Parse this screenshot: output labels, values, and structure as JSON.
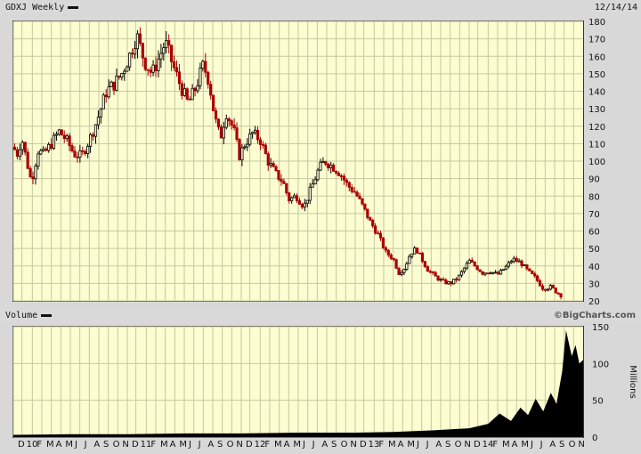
{
  "header": {
    "symbol_label": "GDXJ Weekly",
    "date": "12/14/14"
  },
  "volume_header": {
    "label": "Volume",
    "brand": "©BigCharts.com"
  },
  "chart_data": [
    {
      "type": "candlestick",
      "title": "GDXJ Weekly",
      "ylim": [
        20,
        180
      ],
      "y_ticks": [
        20,
        30,
        40,
        50,
        60,
        70,
        80,
        90,
        100,
        110,
        120,
        130,
        140,
        150,
        160,
        170,
        180
      ],
      "up_color": "#000000",
      "down_color": "#aa0000",
      "grid": true,
      "close_points": [
        {
          "x": 0.0,
          "y": 108
        },
        {
          "x": 0.2,
          "y": 104
        },
        {
          "x": 0.45,
          "y": 113
        },
        {
          "x": 0.7,
          "y": 100
        },
        {
          "x": 0.95,
          "y": 88
        },
        {
          "x": 1.3,
          "y": 106
        },
        {
          "x": 1.6,
          "y": 104
        },
        {
          "x": 2.0,
          "y": 110
        },
        {
          "x": 2.4,
          "y": 117
        },
        {
          "x": 2.8,
          "y": 112
        },
        {
          "x": 3.2,
          "y": 104
        },
        {
          "x": 3.6,
          "y": 103
        },
        {
          "x": 4.0,
          "y": 112
        },
        {
          "x": 4.4,
          "y": 123
        },
        {
          "x": 4.9,
          "y": 140
        },
        {
          "x": 5.3,
          "y": 144
        },
        {
          "x": 5.7,
          "y": 150
        },
        {
          "x": 6.1,
          "y": 160
        },
        {
          "x": 6.5,
          "y": 172
        },
        {
          "x": 6.9,
          "y": 157
        },
        {
          "x": 7.3,
          "y": 150
        },
        {
          "x": 7.7,
          "y": 160
        },
        {
          "x": 8.0,
          "y": 168
        },
        {
          "x": 8.4,
          "y": 155
        },
        {
          "x": 8.8,
          "y": 143
        },
        {
          "x": 9.2,
          "y": 133
        },
        {
          "x": 9.6,
          "y": 142
        },
        {
          "x": 10.0,
          "y": 155
        },
        {
          "x": 10.3,
          "y": 146
        },
        {
          "x": 10.6,
          "y": 125
        },
        {
          "x": 10.9,
          "y": 113
        },
        {
          "x": 11.2,
          "y": 128
        },
        {
          "x": 11.6,
          "y": 118
        },
        {
          "x": 11.9,
          "y": 103
        },
        {
          "x": 12.2,
          "y": 110
        },
        {
          "x": 12.6,
          "y": 116
        },
        {
          "x": 13.0,
          "y": 112
        },
        {
          "x": 13.4,
          "y": 100
        },
        {
          "x": 13.8,
          "y": 93
        },
        {
          "x": 14.2,
          "y": 88
        },
        {
          "x": 14.5,
          "y": 78
        },
        {
          "x": 14.9,
          "y": 80
        },
        {
          "x": 15.3,
          "y": 74
        },
        {
          "x": 15.7,
          "y": 85
        },
        {
          "x": 16.1,
          "y": 96
        },
        {
          "x": 16.4,
          "y": 100
        },
        {
          "x": 16.8,
          "y": 97
        },
        {
          "x": 17.2,
          "y": 93
        },
        {
          "x": 17.6,
          "y": 86
        },
        {
          "x": 18.0,
          "y": 82
        },
        {
          "x": 18.4,
          "y": 74
        },
        {
          "x": 18.8,
          "y": 65
        },
        {
          "x": 19.2,
          "y": 58
        },
        {
          "x": 19.6,
          "y": 48
        },
        {
          "x": 20.0,
          "y": 44
        },
        {
          "x": 20.3,
          "y": 36
        },
        {
          "x": 20.6,
          "y": 39
        },
        {
          "x": 20.9,
          "y": 47
        },
        {
          "x": 21.2,
          "y": 50
        },
        {
          "x": 21.5,
          "y": 44
        },
        {
          "x": 21.8,
          "y": 38
        },
        {
          "x": 22.2,
          "y": 34
        },
        {
          "x": 22.6,
          "y": 31
        },
        {
          "x": 23.0,
          "y": 30
        },
        {
          "x": 23.4,
          "y": 33
        },
        {
          "x": 23.7,
          "y": 38
        },
        {
          "x": 24.0,
          "y": 43
        },
        {
          "x": 24.3,
          "y": 40
        },
        {
          "x": 24.7,
          "y": 36
        },
        {
          "x": 25.1,
          "y": 37
        },
        {
          "x": 25.5,
          "y": 35
        },
        {
          "x": 25.9,
          "y": 39
        },
        {
          "x": 26.3,
          "y": 44
        },
        {
          "x": 26.7,
          "y": 42
        },
        {
          "x": 27.1,
          "y": 37
        },
        {
          "x": 27.5,
          "y": 33
        },
        {
          "x": 27.9,
          "y": 27
        },
        {
          "x": 28.3,
          "y": 28
        },
        {
          "x": 28.6,
          "y": 25
        },
        {
          "x": 28.9,
          "y": 23
        }
      ],
      "months": [
        {
          "label": "D",
          "x": 0.0
        },
        {
          "label": "10",
          "x": 0.45
        },
        {
          "label": "F",
          "x": 1.0
        },
        {
          "label": "M",
          "x": 1.5
        },
        {
          "label": "A",
          "x": 2.0
        },
        {
          "label": "M",
          "x": 2.5
        },
        {
          "label": "J",
          "x": 3.0
        },
        {
          "label": "J",
          "x": 3.5
        },
        {
          "label": "A",
          "x": 4.0
        },
        {
          "label": "S",
          "x": 4.5
        },
        {
          "label": "O",
          "x": 5.0
        },
        {
          "label": "N",
          "x": 5.5
        },
        {
          "label": "D",
          "x": 6.0
        },
        {
          "label": "11",
          "x": 6.45
        },
        {
          "label": "F",
          "x": 7.0
        },
        {
          "label": "M",
          "x": 7.5
        },
        {
          "label": "A",
          "x": 8.0
        },
        {
          "label": "M",
          "x": 8.5
        },
        {
          "label": "J",
          "x": 9.0
        },
        {
          "label": "J",
          "x": 9.5
        },
        {
          "label": "A",
          "x": 10.0
        },
        {
          "label": "S",
          "x": 10.5
        },
        {
          "label": "O",
          "x": 11.0
        },
        {
          "label": "N",
          "x": 11.5
        },
        {
          "label": "D",
          "x": 12.0
        },
        {
          "label": "12",
          "x": 12.45
        },
        {
          "label": "F",
          "x": 13.0
        },
        {
          "label": "M",
          "x": 13.5
        },
        {
          "label": "A",
          "x": 14.0
        },
        {
          "label": "M",
          "x": 14.5
        },
        {
          "label": "J",
          "x": 15.0
        },
        {
          "label": "J",
          "x": 15.5
        },
        {
          "label": "A",
          "x": 16.0
        },
        {
          "label": "S",
          "x": 16.5
        },
        {
          "label": "O",
          "x": 17.0
        },
        {
          "label": "N",
          "x": 17.5
        },
        {
          "label": "D",
          "x": 18.0
        },
        {
          "label": "13",
          "x": 18.45
        },
        {
          "label": "F",
          "x": 19.0
        },
        {
          "label": "M",
          "x": 19.5
        },
        {
          "label": "A",
          "x": 20.0
        },
        {
          "label": "M",
          "x": 20.5
        },
        {
          "label": "J",
          "x": 21.0
        },
        {
          "label": "J",
          "x": 21.5
        },
        {
          "label": "A",
          "x": 22.0
        },
        {
          "label": "S",
          "x": 22.5
        },
        {
          "label": "O",
          "x": 23.0
        },
        {
          "label": "N",
          "x": 23.5
        },
        {
          "label": "D",
          "x": 24.0
        },
        {
          "label": "14",
          "x": 24.45
        },
        {
          "label": "F",
          "x": 25.0
        },
        {
          "label": "M",
          "x": 25.5
        },
        {
          "label": "A",
          "x": 26.0
        },
        {
          "label": "M",
          "x": 26.5
        },
        {
          "label": "J",
          "x": 27.0
        },
        {
          "label": "J",
          "x": 27.5
        },
        {
          "label": "A",
          "x": 28.0
        },
        {
          "label": "S",
          "x": 28.5
        },
        {
          "label": "O",
          "x": 29.0
        },
        {
          "label": "N",
          "x": 29.5
        }
      ],
      "xlim": [
        0,
        30
      ]
    },
    {
      "type": "area",
      "title": "Volume",
      "ylabel": "Millions",
      "ylim": [
        0,
        150
      ],
      "y_ticks": [
        0,
        50,
        100,
        150
      ],
      "fill_color": "#000000",
      "points": [
        {
          "x": 0,
          "y": 3
        },
        {
          "x": 3,
          "y": 4
        },
        {
          "x": 6,
          "y": 4
        },
        {
          "x": 9,
          "y": 5
        },
        {
          "x": 12,
          "y": 5
        },
        {
          "x": 15,
          "y": 6
        },
        {
          "x": 18,
          "y": 6
        },
        {
          "x": 20,
          "y": 7
        },
        {
          "x": 22,
          "y": 9
        },
        {
          "x": 24,
          "y": 12
        },
        {
          "x": 25,
          "y": 18
        },
        {
          "x": 25.6,
          "y": 32
        },
        {
          "x": 26.2,
          "y": 22
        },
        {
          "x": 26.7,
          "y": 40
        },
        {
          "x": 27.1,
          "y": 30
        },
        {
          "x": 27.5,
          "y": 52
        },
        {
          "x": 27.9,
          "y": 35
        },
        {
          "x": 28.3,
          "y": 60
        },
        {
          "x": 28.6,
          "y": 45
        },
        {
          "x": 28.9,
          "y": 90
        },
        {
          "x": 29.1,
          "y": 145
        },
        {
          "x": 29.4,
          "y": 110
        },
        {
          "x": 29.6,
          "y": 125
        },
        {
          "x": 29.8,
          "y": 100
        },
        {
          "x": 30,
          "y": 105
        }
      ],
      "xlim": [
        0,
        30
      ]
    }
  ]
}
